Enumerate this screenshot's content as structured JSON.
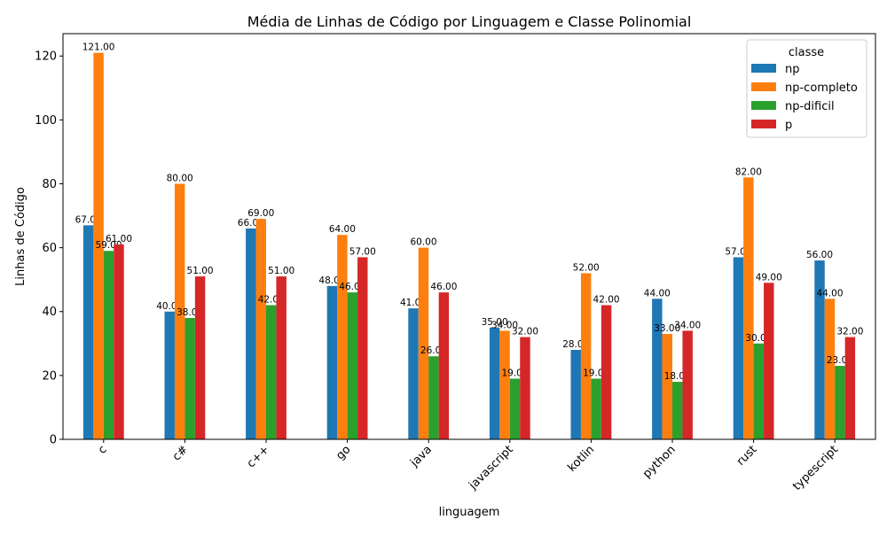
{
  "chart_data": {
    "type": "bar",
    "title": "Média de Linhas de Código por Linguagem e Classe Polinomial",
    "xlabel": "linguagem",
    "ylabel": "Linhas de Código",
    "ylim": [
      0,
      127
    ],
    "yticks": [
      0,
      20,
      40,
      60,
      80,
      100,
      120
    ],
    "categories": [
      "c",
      "c#",
      "c++",
      "go",
      "java",
      "javascript",
      "kotlin",
      "python",
      "rust",
      "typescript"
    ],
    "legend": {
      "title": "classe",
      "position": "top-right"
    },
    "series": [
      {
        "name": "np",
        "color": "#1f77b4",
        "values": [
          67,
          40,
          66,
          48,
          41,
          35,
          28,
          44,
          57,
          56
        ],
        "labels": [
          "67.00",
          "40.00",
          "66.00",
          "48.00",
          "41.00",
          "35.00",
          "28.00",
          "44.00",
          "57.00",
          "56.00"
        ]
      },
      {
        "name": "np-completo",
        "color": "#ff7f0e",
        "values": [
          121,
          80,
          69,
          64,
          60,
          34,
          52,
          33,
          82,
          44
        ],
        "labels": [
          "121.00",
          "80.00",
          "69.00",
          "64.00",
          "60.00",
          "34.00",
          "52.00",
          "33.00",
          "82.00",
          "44.00"
        ]
      },
      {
        "name": "np-dificil",
        "color": "#2ca02c",
        "values": [
          59,
          38,
          42,
          46,
          26,
          19,
          19,
          18,
          30,
          23
        ],
        "labels": [
          "59.00",
          "38.00",
          "42.00",
          "46.00",
          "26.00",
          "19.00",
          "19.00",
          "18.00",
          "30.00",
          "23.00"
        ]
      },
      {
        "name": "p",
        "color": "#d62728",
        "values": [
          61,
          51,
          51,
          57,
          46,
          32,
          42,
          34,
          49,
          32
        ],
        "labels": [
          "61.00",
          "51.00",
          "51.00",
          "57.00",
          "46.00",
          "32.00",
          "42.00",
          "34.00",
          "49.00",
          "32.00"
        ]
      }
    ]
  }
}
